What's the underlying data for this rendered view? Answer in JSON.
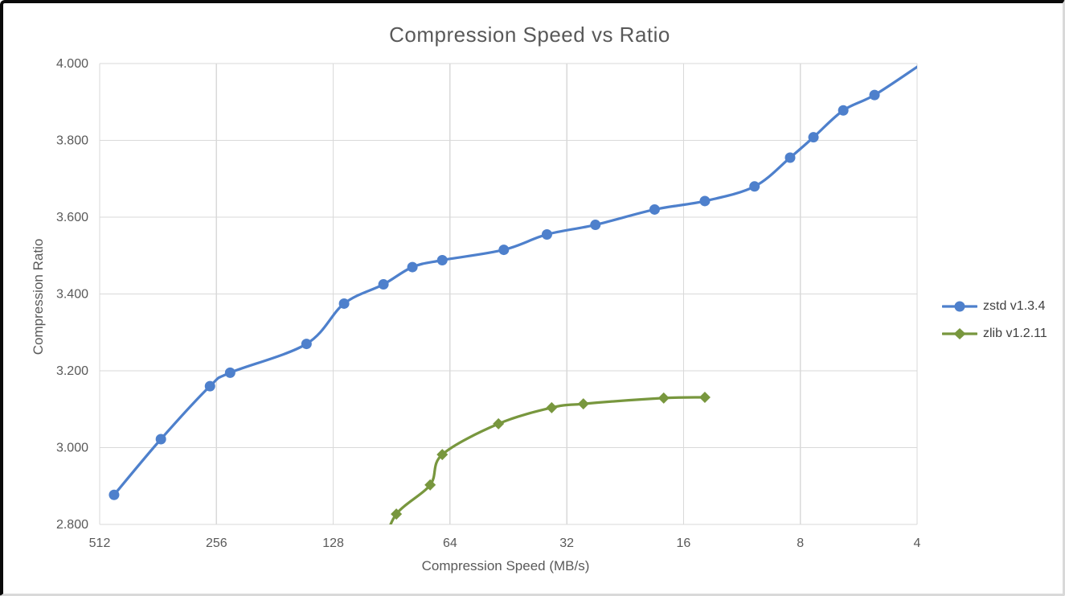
{
  "chart_data": {
    "type": "line",
    "title": "Compression Speed vs Ratio",
    "xlabel": "Compression Speed (MB/s)",
    "ylabel": "Compression Ratio",
    "x_scale": "log2_reversed",
    "x_range": [
      512,
      4
    ],
    "y_range": [
      2.8,
      4.0
    ],
    "x_ticks": [
      "512",
      "256",
      "128",
      "64",
      "32",
      "16",
      "8",
      "4"
    ],
    "y_ticks": [
      "2.800",
      "3.000",
      "3.200",
      "3.400",
      "3.600",
      "3.800",
      "4.000"
    ],
    "grid": true,
    "grid_color": "#d9d9d9",
    "text_color": "#595959",
    "legend_position": "right",
    "series": [
      {
        "name": "zstd v1.3.4",
        "color": "#4e80cc",
        "marker": "circle",
        "points": [
          [
            470,
            2.877
          ],
          [
            356,
            3.022
          ],
          [
            266,
            3.16
          ],
          [
            236,
            3.195
          ],
          [
            150,
            3.27
          ],
          [
            120,
            3.375
          ],
          [
            95,
            3.425
          ],
          [
            80,
            3.47
          ],
          [
            67,
            3.488
          ],
          [
            46.5,
            3.515
          ],
          [
            36,
            3.555
          ],
          [
            27,
            3.58
          ],
          [
            19,
            3.62
          ],
          [
            14.1,
            3.642
          ],
          [
            10.5,
            3.68
          ],
          [
            8.5,
            3.755
          ],
          [
            7.4,
            3.808
          ],
          [
            6.2,
            3.878
          ],
          [
            5.15,
            3.918
          ],
          [
            3.95,
            3.995
          ]
        ],
        "hide_marker_indices": [
          19
        ]
      },
      {
        "name": "zlib v1.2.11",
        "color": "#78973e",
        "marker": "diamond",
        "points": [
          [
            95,
            2.743
          ],
          [
            88,
            2.827
          ],
          [
            72,
            2.903
          ],
          [
            67,
            2.982
          ],
          [
            48,
            3.062
          ],
          [
            35,
            3.104
          ],
          [
            29,
            3.114
          ],
          [
            18,
            3.129
          ],
          [
            14.1,
            3.131
          ]
        ],
        "hide_marker_indices": [
          0
        ]
      }
    ]
  }
}
